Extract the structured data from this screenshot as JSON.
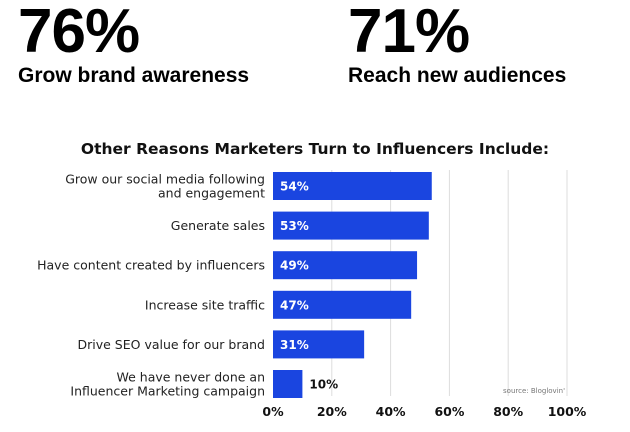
{
  "stats": [
    {
      "value": "76%",
      "label": "Grow brand awareness"
    },
    {
      "value": "71%",
      "label": "Reach new audiences"
    }
  ],
  "colors": {
    "bar": "#1a45e0",
    "gridline": "#dddddd",
    "text": "#111111"
  },
  "chart_data": {
    "type": "bar",
    "orientation": "horizontal",
    "title": "Other Reasons Marketers Turn to Influencers Include:",
    "categories": [
      [
        "Grow our social media following",
        "and engagement"
      ],
      [
        "Generate sales"
      ],
      [
        "Have content created by influencers"
      ],
      [
        "Increase site traffic"
      ],
      [
        "Drive SEO value for our brand"
      ],
      [
        "We have never done an",
        "Influencer Marketing campaign"
      ]
    ],
    "values": [
      54,
      53,
      49,
      47,
      31,
      10
    ],
    "data_labels": [
      "54%",
      "53%",
      "49%",
      "47%",
      "31%",
      "10%"
    ],
    "xlim": [
      0,
      100
    ],
    "xticks": [
      0,
      20,
      40,
      60,
      80,
      100
    ],
    "xtick_labels": [
      "0%",
      "20%",
      "40%",
      "60%",
      "80%",
      "100%"
    ],
    "grid": true,
    "source": "source: Bloglovin'"
  }
}
